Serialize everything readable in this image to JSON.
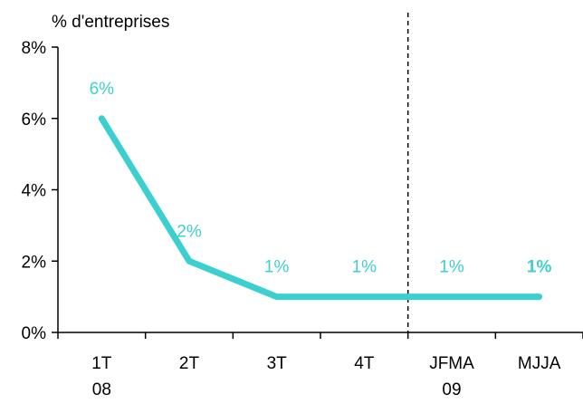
{
  "chart_data": {
    "type": "line",
    "ylabel": "% d'entreprises",
    "categories": [
      [
        "1T",
        "08"
      ],
      [
        "2T",
        ""
      ],
      [
        "3T",
        ""
      ],
      [
        "4T",
        ""
      ],
      [
        "JFMA",
        "09"
      ],
      [
        "MJJA",
        ""
      ]
    ],
    "series": [
      {
        "values": [
          6,
          2,
          1,
          1,
          1,
          1
        ],
        "labels": [
          "6%",
          "2%",
          "1%",
          "1%",
          "1%",
          "1%"
        ],
        "bold_last_label": true,
        "color": "#3ccfcf"
      }
    ],
    "ylim": [
      0,
      8
    ],
    "yticks": [
      {
        "value": 0,
        "label": "0%"
      },
      {
        "value": 2,
        "label": "2%"
      },
      {
        "value": 4,
        "label": "4%"
      },
      {
        "value": 6,
        "label": "6%"
      },
      {
        "value": 8,
        "label": "8%"
      }
    ],
    "separator_between": [
      3,
      4
    ],
    "grid": false,
    "colors": {
      "axis": "#000000",
      "text": "#000000",
      "separator": "#000000"
    }
  }
}
